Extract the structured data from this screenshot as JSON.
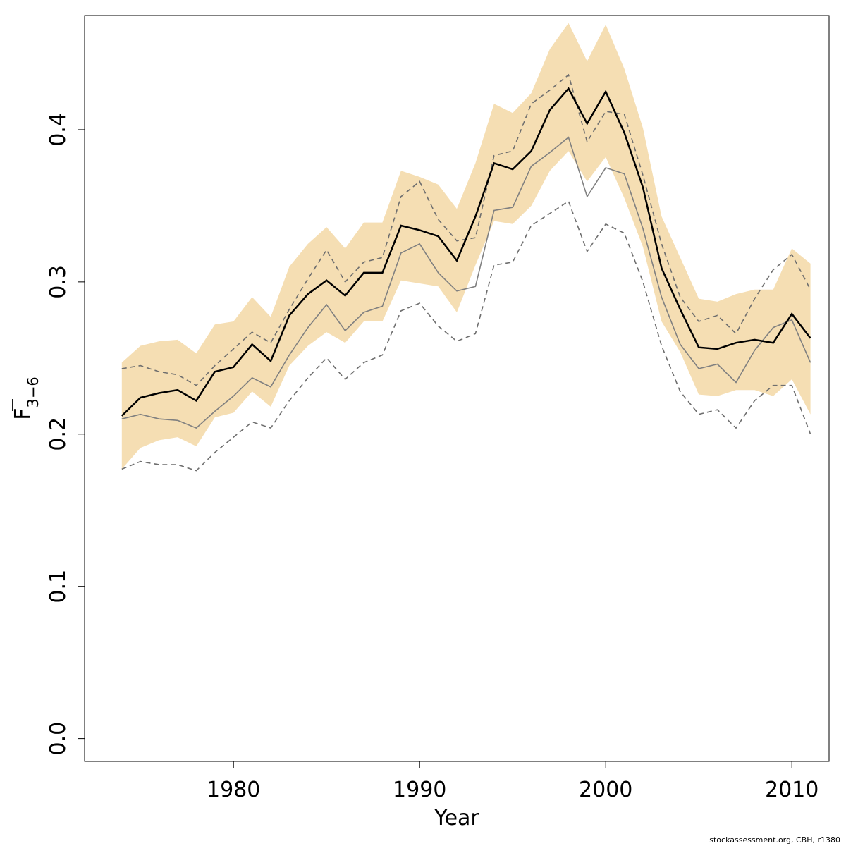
{
  "chart_data": {
    "type": "line",
    "xlabel": "Year",
    "ylabel_main": "F",
    "ylabel_sub": "3−6",
    "xlim": [
      1972,
      2012
    ],
    "ylim": [
      -0.015,
      0.475
    ],
    "x_ticks": [
      1980,
      1990,
      2000,
      2010
    ],
    "y_ticks": [
      0.0,
      0.1,
      0.2,
      0.3,
      0.4
    ],
    "y_tick_labels": [
      "0.0",
      "0.1",
      "0.2",
      "0.3",
      "0.4"
    ],
    "band_color": "#f5deb3",
    "x": [
      1974,
      1975,
      1976,
      1977,
      1978,
      1979,
      1980,
      1981,
      1982,
      1983,
      1984,
      1985,
      1986,
      1987,
      1988,
      1989,
      1990,
      1991,
      1992,
      1993,
      1994,
      1995,
      1996,
      1997,
      1998,
      1999,
      2000,
      2001,
      2002,
      2003,
      2004,
      2005,
      2006,
      2007,
      2008,
      2009,
      2010,
      2011
    ],
    "band_upper": [
      0.247,
      0.258,
      0.261,
      0.262,
      0.253,
      0.272,
      0.274,
      0.29,
      0.277,
      0.31,
      0.325,
      0.336,
      0.322,
      0.339,
      0.339,
      0.373,
      0.369,
      0.364,
      0.348,
      0.378,
      0.417,
      0.411,
      0.424,
      0.453,
      0.47,
      0.445,
      0.469,
      0.44,
      0.401,
      0.343,
      0.316,
      0.289,
      0.287,
      0.292,
      0.295,
      0.295,
      0.322,
      0.312
    ],
    "band_lower": [
      0.177,
      0.191,
      0.196,
      0.198,
      0.192,
      0.211,
      0.214,
      0.228,
      0.218,
      0.245,
      0.258,
      0.267,
      0.26,
      0.274,
      0.274,
      0.301,
      0.299,
      0.297,
      0.28,
      0.311,
      0.34,
      0.338,
      0.35,
      0.373,
      0.386,
      0.366,
      0.382,
      0.355,
      0.323,
      0.274,
      0.254,
      0.226,
      0.225,
      0.229,
      0.229,
      0.225,
      0.236,
      0.213
    ],
    "series": [
      {
        "style": "solid-black",
        "values": [
          0.212,
          0.224,
          0.227,
          0.229,
          0.222,
          0.241,
          0.244,
          0.259,
          0.248,
          0.278,
          0.292,
          0.301,
          0.291,
          0.306,
          0.306,
          0.337,
          0.334,
          0.33,
          0.314,
          0.343,
          0.378,
          0.374,
          0.386,
          0.413,
          0.427,
          0.404,
          0.425,
          0.398,
          0.362,
          0.309,
          0.282,
          0.257,
          0.256,
          0.26,
          0.262,
          0.26,
          0.279,
          0.263
        ]
      },
      {
        "style": "solid-grey",
        "values": [
          0.21,
          0.213,
          0.21,
          0.209,
          0.204,
          0.215,
          0.225,
          0.237,
          0.231,
          0.252,
          0.27,
          0.285,
          0.268,
          0.28,
          0.284,
          0.319,
          0.325,
          0.306,
          0.294,
          0.297,
          0.347,
          0.349,
          0.376,
          0.385,
          0.395,
          0.356,
          0.375,
          0.371,
          0.335,
          0.29,
          0.259,
          0.243,
          0.246,
          0.234,
          0.255,
          0.27,
          0.275,
          0.247
        ]
      },
      {
        "style": "dashed-grey",
        "values": [
          0.243,
          0.245,
          0.241,
          0.239,
          0.232,
          0.245,
          0.256,
          0.267,
          0.26,
          0.282,
          0.302,
          0.321,
          0.3,
          0.313,
          0.316,
          0.356,
          0.366,
          0.341,
          0.327,
          0.329,
          0.383,
          0.386,
          0.417,
          0.426,
          0.436,
          0.392,
          0.412,
          0.41,
          0.37,
          0.325,
          0.29,
          0.274,
          0.278,
          0.266,
          0.289,
          0.308,
          0.318,
          0.295
        ]
      },
      {
        "style": "dashed-grey",
        "values": [
          0.177,
          0.182,
          0.18,
          0.18,
          0.176,
          0.188,
          0.198,
          0.208,
          0.204,
          0.222,
          0.237,
          0.25,
          0.236,
          0.247,
          0.252,
          0.281,
          0.286,
          0.271,
          0.261,
          0.266,
          0.311,
          0.313,
          0.337,
          0.345,
          0.353,
          0.32,
          0.338,
          0.332,
          0.3,
          0.258,
          0.228,
          0.213,
          0.216,
          0.204,
          0.222,
          0.232,
          0.232,
          0.2
        ]
      }
    ]
  },
  "footnote": "stockassessment.org, CBH, r1380"
}
